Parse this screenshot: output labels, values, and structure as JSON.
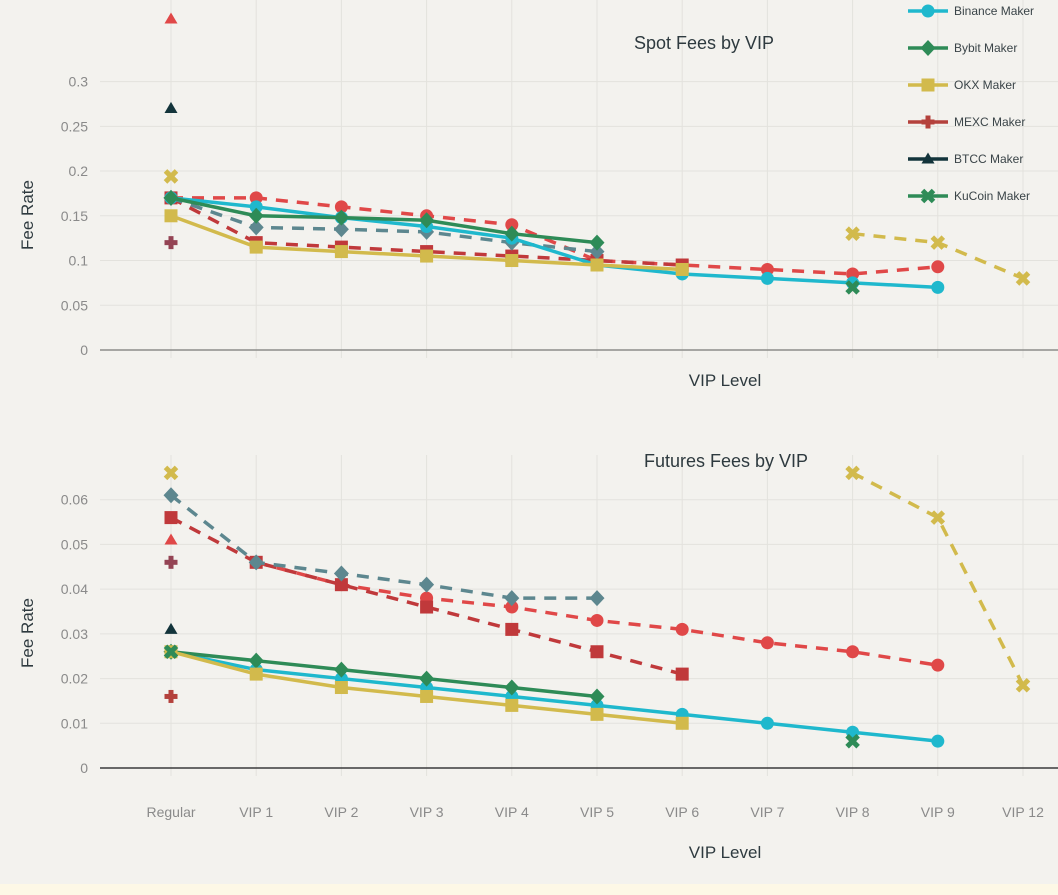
{
  "chart_data": [
    {
      "type": "line",
      "title": "Spot Fees by VIP",
      "xlabel": "VIP Level",
      "ylabel": "Fee Rate",
      "categories": [
        "Regular",
        "VIP 1",
        "VIP 2",
        "VIP 3",
        "VIP 4",
        "VIP 5",
        "VIP 6",
        "VIP 7",
        "VIP 8",
        "VIP 9",
        "VIP 12"
      ],
      "show_x_tick_labels": false,
      "yticks": [
        0,
        0.05,
        0.1,
        0.15,
        0.2,
        0.25,
        0.3
      ],
      "ylim": [
        0,
        0.38
      ],
      "grid": true,
      "series": [
        {
          "name": "Binance Maker",
          "color": "#1fb8cd",
          "marker": "circle",
          "dash": false,
          "values": [
            0.17,
            0.16,
            0.148,
            0.138,
            0.125,
            0.095,
            0.085,
            0.08,
            0.075,
            0.07,
            null
          ]
        },
        {
          "name": "Bybit Maker",
          "color": "#2e8b57",
          "marker": "diamond",
          "dash": false,
          "values": [
            0.17,
            0.15,
            0.148,
            0.145,
            0.13,
            0.12,
            null,
            null,
            null,
            null,
            null
          ]
        },
        {
          "name": "OKX Maker",
          "color": "#d2ba4c",
          "marker": "square",
          "dash": false,
          "values": [
            0.15,
            0.115,
            0.11,
            0.105,
            0.1,
            0.095,
            0.09,
            null,
            null,
            null,
            null
          ]
        },
        {
          "name": "MEXC Maker",
          "color": "#b4413c",
          "marker": "cross",
          "dash": false,
          "values": [
            null,
            null,
            null,
            null,
            null,
            null,
            null,
            null,
            null,
            null,
            null
          ]
        },
        {
          "name": "BTCC Maker",
          "color": "#13343b",
          "marker": "triangle",
          "dash": false,
          "values": [
            0.27,
            null,
            null,
            null,
            null,
            null,
            null,
            null,
            null,
            null,
            null
          ]
        },
        {
          "name": "KuCoin Maker",
          "color": "#2e8b57",
          "marker": "x",
          "dash": false,
          "values": [
            null,
            null,
            null,
            null,
            null,
            null,
            null,
            null,
            0.07,
            null,
            null
          ]
        },
        {
          "color": "#e04848",
          "marker": "circle",
          "dash": true,
          "values": [
            0.17,
            0.17,
            0.16,
            0.15,
            0.14,
            0.1,
            0.095,
            0.09,
            0.085,
            0.093,
            null
          ]
        },
        {
          "color": "#c0393b",
          "marker": "square",
          "dash": true,
          "values": [
            0.17,
            0.12,
            0.115,
            0.11,
            0.105,
            0.1,
            0.095,
            null,
            null,
            null,
            null
          ]
        },
        {
          "color": "#5d878f",
          "marker": "diamond",
          "dash": true,
          "values": [
            0.17,
            0.137,
            0.135,
            0.132,
            0.12,
            0.11,
            null,
            null,
            null,
            null,
            null
          ]
        },
        {
          "color": "#d2ba4c",
          "marker": "x",
          "dash": true,
          "values": [
            0.194,
            null,
            null,
            null,
            null,
            null,
            null,
            null,
            0.13,
            0.12,
            0.08
          ]
        },
        {
          "color": "#e04848",
          "marker": "triangle",
          "dash": false,
          "values": [
            0.37,
            null,
            null,
            null,
            null,
            null,
            null,
            null,
            null,
            null,
            null
          ]
        },
        {
          "color": "#944454",
          "marker": "cross",
          "dash": false,
          "values": [
            0.12,
            null,
            null,
            null,
            null,
            null,
            null,
            null,
            null,
            null,
            null
          ]
        }
      ],
      "legend": {
        "placement": "top-right",
        "entries": [
          "Binance Maker",
          "Bybit Maker",
          "OKX Maker",
          "MEXC Maker",
          "BTCC Maker",
          "KuCoin Maker"
        ]
      }
    },
    {
      "type": "line",
      "title": "Futures Fees by VIP",
      "xlabel": "VIP Level",
      "ylabel": "Fee Rate",
      "categories": [
        "Regular",
        "VIP 1",
        "VIP 2",
        "VIP 3",
        "VIP 4",
        "VIP 5",
        "VIP 6",
        "VIP 7",
        "VIP 8",
        "VIP 9",
        "VIP 12"
      ],
      "show_x_tick_labels": true,
      "yticks": [
        0,
        0.01,
        0.02,
        0.03,
        0.04,
        0.05,
        0.06
      ],
      "ylim": [
        0,
        0.07
      ],
      "grid": true,
      "series": [
        {
          "name": "Binance Maker",
          "color": "#1fb8cd",
          "marker": "circle",
          "dash": false,
          "values": [
            0.026,
            0.022,
            0.02,
            0.018,
            0.016,
            0.014,
            0.012,
            0.01,
            0.008,
            0.006,
            null
          ]
        },
        {
          "name": "Bybit Maker",
          "color": "#2e8b57",
          "marker": "diamond",
          "dash": false,
          "values": [
            0.026,
            0.024,
            0.022,
            0.02,
            0.018,
            0.016,
            null,
            null,
            null,
            null,
            null
          ]
        },
        {
          "name": "OKX Maker",
          "color": "#d2ba4c",
          "marker": "square",
          "dash": false,
          "values": [
            0.026,
            0.021,
            0.018,
            0.016,
            0.014,
            0.012,
            0.01,
            null,
            null,
            null,
            null
          ]
        },
        {
          "name": "MEXC Maker",
          "color": "#b4413c",
          "marker": "cross",
          "dash": false,
          "values": [
            0.016,
            null,
            null,
            null,
            null,
            null,
            null,
            null,
            null,
            null,
            null
          ]
        },
        {
          "name": "BTCC Maker",
          "color": "#13343b",
          "marker": "triangle",
          "dash": false,
          "values": [
            0.031,
            null,
            null,
            null,
            null,
            null,
            null,
            null,
            null,
            null,
            null
          ]
        },
        {
          "name": "KuCoin Maker",
          "color": "#2e8b57",
          "marker": "x",
          "dash": false,
          "values": [
            0.026,
            null,
            null,
            null,
            null,
            null,
            null,
            null,
            0.006,
            null,
            null
          ]
        },
        {
          "color": "#e04848",
          "marker": "circle",
          "dash": true,
          "values": [
            null,
            0.046,
            0.041,
            0.038,
            0.036,
            0.033,
            0.031,
            0.028,
            0.026,
            0.023,
            null
          ]
        },
        {
          "color": "#c0393b",
          "marker": "square",
          "dash": true,
          "values": [
            0.056,
            0.046,
            0.041,
            0.036,
            0.031,
            0.026,
            0.021,
            null,
            null,
            null,
            null
          ]
        },
        {
          "color": "#5d878f",
          "marker": "diamond",
          "dash": true,
          "values": [
            0.061,
            0.046,
            0.0435,
            0.041,
            0.038,
            0.038,
            null,
            null,
            null,
            null,
            null
          ]
        },
        {
          "color": "#d2ba4c",
          "marker": "x",
          "dash": true,
          "values": [
            0.066,
            null,
            null,
            null,
            null,
            null,
            null,
            null,
            0.066,
            0.056,
            0.0185
          ]
        },
        {
          "color": "#e04848",
          "marker": "triangle",
          "dash": false,
          "values": [
            0.051,
            null,
            null,
            null,
            null,
            null,
            null,
            null,
            null,
            null,
            null
          ]
        },
        {
          "color": "#944454",
          "marker": "cross",
          "dash": false,
          "values": [
            0.046,
            null,
            null,
            null,
            null,
            null,
            null,
            null,
            null,
            null,
            null
          ]
        }
      ]
    }
  ]
}
